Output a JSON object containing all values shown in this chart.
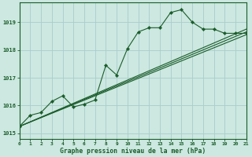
{
  "xlabel": "Graphe pression niveau de la mer (hPa)",
  "bg_color": "#cce8e0",
  "grid_color": "#aacccc",
  "line_color": "#1a5c2a",
  "x_min": 0,
  "x_max": 21,
  "y_min": 1014.8,
  "y_max": 1019.7,
  "yticks": [
    1015,
    1016,
    1017,
    1018,
    1019
  ],
  "xticks": [
    0,
    1,
    2,
    3,
    4,
    5,
    6,
    7,
    8,
    9,
    10,
    11,
    12,
    13,
    14,
    15,
    16,
    17,
    18,
    19,
    20,
    21
  ],
  "series1_x": [
    0,
    1,
    2,
    3,
    4,
    5,
    6,
    7,
    8,
    9,
    10,
    11,
    12,
    13,
    14,
    15,
    16,
    17,
    18,
    19,
    20,
    21
  ],
  "series1_y": [
    1015.25,
    1015.65,
    1015.75,
    1016.15,
    1016.35,
    1015.95,
    1016.05,
    1016.2,
    1017.45,
    1017.1,
    1018.05,
    1018.65,
    1018.8,
    1018.8,
    1019.35,
    1019.45,
    1019.0,
    1018.75,
    1018.75,
    1018.6,
    1018.6,
    1018.6
  ],
  "series2_x": [
    0,
    21
  ],
  "series2_y": [
    1015.25,
    1018.65
  ],
  "series3_x": [
    0,
    21
  ],
  "series3_y": [
    1015.25,
    1018.75
  ],
  "series4_x": [
    0,
    21
  ],
  "series4_y": [
    1015.25,
    1018.55
  ]
}
